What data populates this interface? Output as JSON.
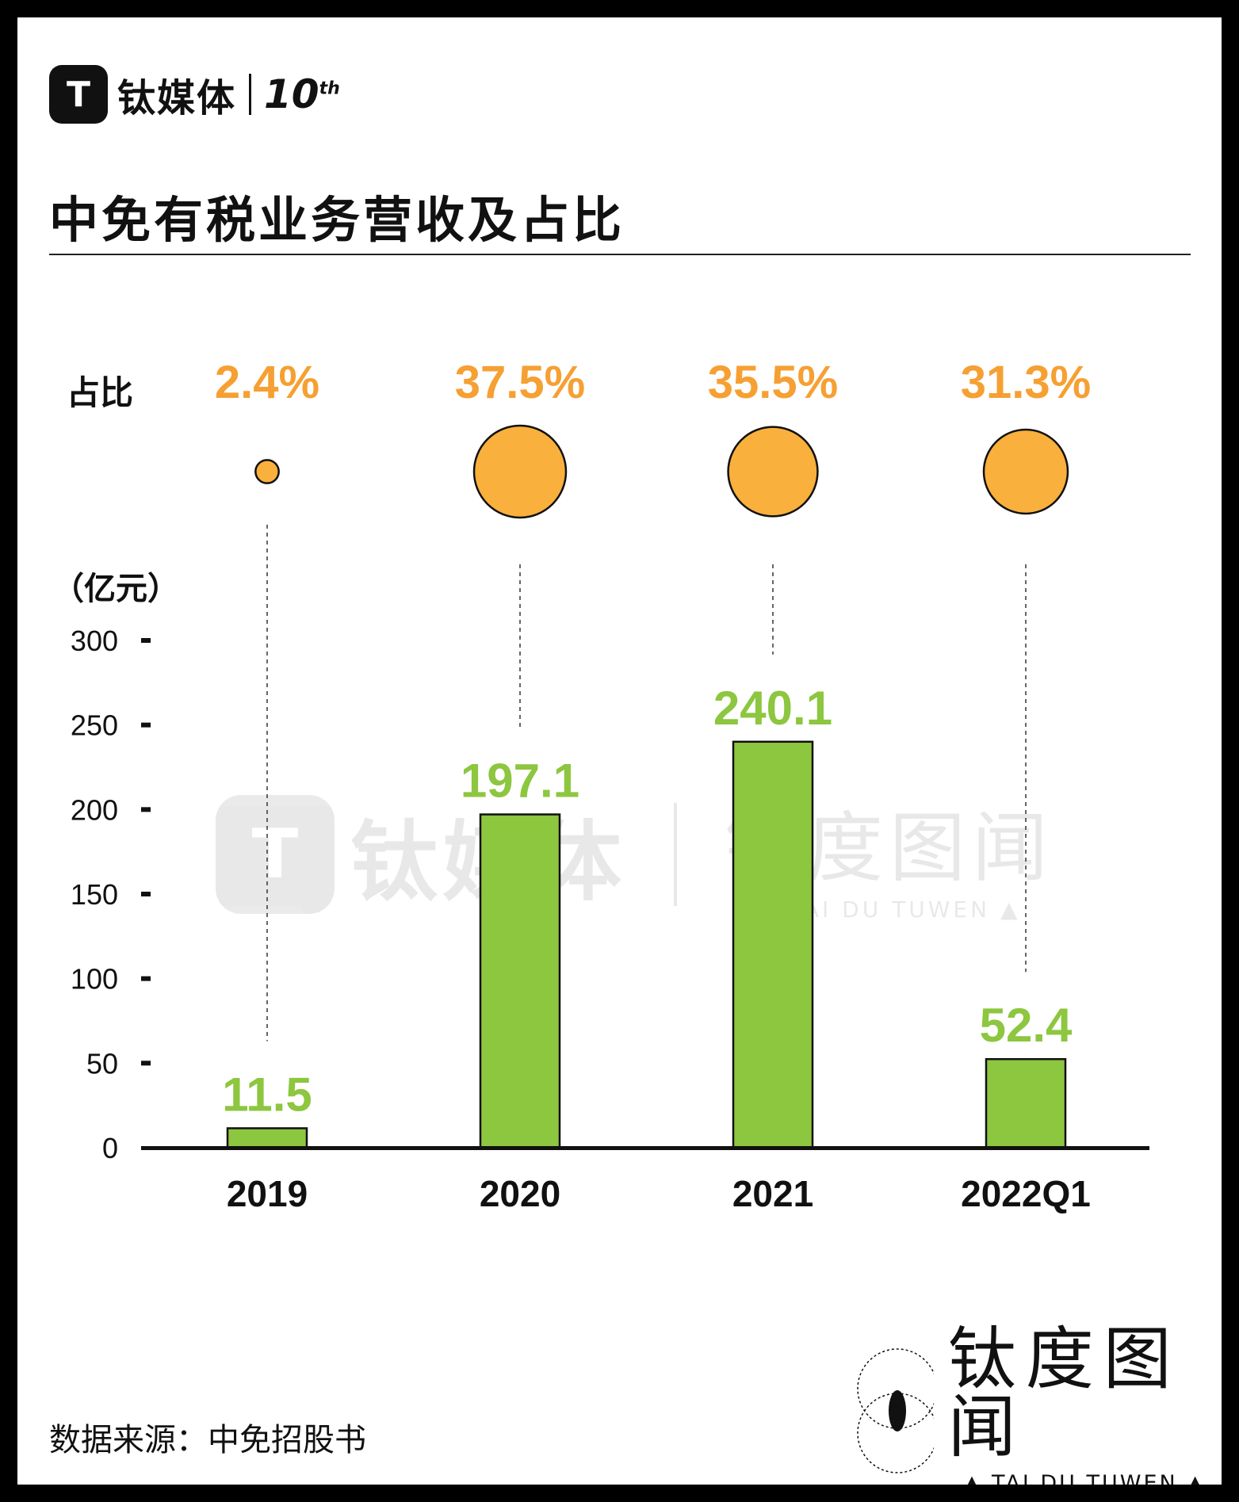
{
  "header": {
    "brand_mark": "T",
    "brand_name": "钛媒体",
    "anniversary": "10",
    "anniversary_suffix": "th"
  },
  "title": "中免有税业务营收及占比",
  "share_label": "占比",
  "unit_label": "（亿元）",
  "source": "数据来源：中免招股书",
  "watermark": {
    "center_brand": "钛媒体",
    "name_cn": "钛度图闻",
    "name_en": "▲ TAI DU TUWEN ▲"
  },
  "colors": {
    "bar": "#8dc63f",
    "bar_label": "#8dc63f",
    "share_circle": "#f9b03c",
    "share_label": "#f6a033",
    "axis": "#111111"
  },
  "chart_data": {
    "type": "bar",
    "categories": [
      "2019",
      "2020",
      "2021",
      "2022Q1"
    ],
    "values": [
      11.5,
      197.1,
      240.1,
      52.4
    ],
    "value_labels": [
      "11.5",
      "197.1",
      "240.1",
      "52.4"
    ],
    "share_percent": [
      2.4,
      37.5,
      35.5,
      31.3
    ],
    "share_labels": [
      "2.4%",
      "37.5%",
      "35.5%",
      "31.3%"
    ],
    "ylabel": "（亿元）",
    "ylim": [
      0,
      300
    ],
    "yticks": [
      0,
      50,
      100,
      150,
      200,
      250,
      300
    ],
    "ytick_labels": [
      "0",
      "50",
      "100",
      "150",
      "200",
      "250",
      "300"
    ],
    "grid": false
  }
}
